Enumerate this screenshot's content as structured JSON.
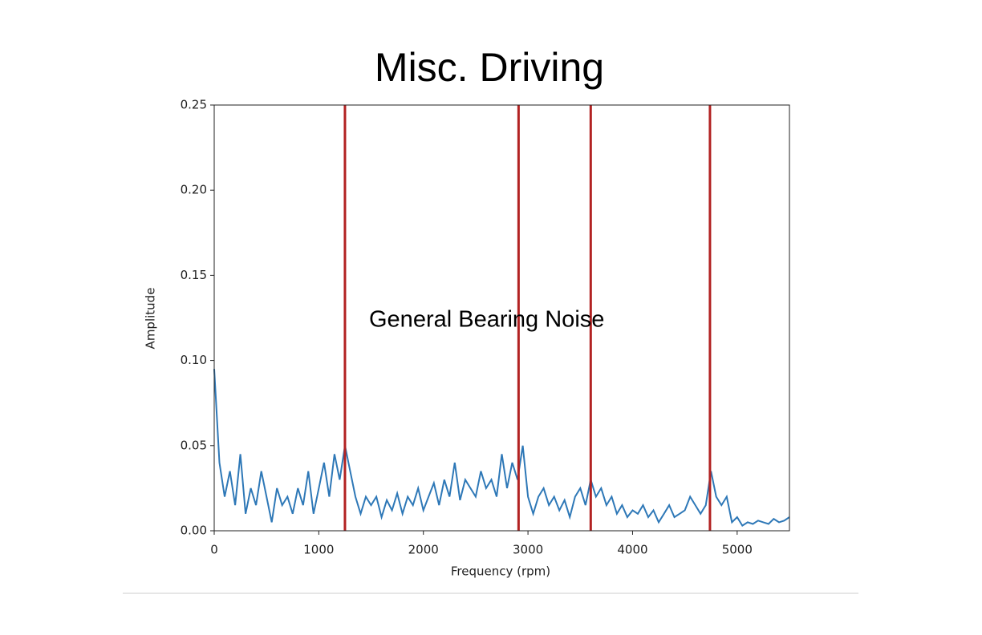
{
  "chart_data": {
    "type": "line",
    "title": "Misc. Driving",
    "xlabel": "Frequency (rpm)",
    "ylabel": "Amplitude",
    "annotation": "General Bearing Noise",
    "color": "#2e78b7",
    "vline_color": "#b22222",
    "vlines": [
      1250,
      2910,
      3600,
      4740
    ],
    "xlim": [
      0,
      5500
    ],
    "ylim": [
      0,
      0.25
    ],
    "xticks": [
      0,
      1000,
      2000,
      3000,
      4000,
      5000
    ],
    "yticks": [
      {
        "value": 0,
        "label": "0.00"
      },
      {
        "value": 0.05,
        "label": "0.05"
      },
      {
        "value": 0.1,
        "label": "0.10"
      },
      {
        "value": 0.15,
        "label": "0.15"
      },
      {
        "value": 0.2,
        "label": "0.20"
      },
      {
        "value": 0.25,
        "label": "0.25"
      }
    ],
    "x": [
      0,
      50,
      100,
      150,
      200,
      250,
      300,
      350,
      400,
      450,
      500,
      550,
      600,
      650,
      700,
      750,
      800,
      850,
      900,
      950,
      1000,
      1050,
      1100,
      1150,
      1200,
      1250,
      1300,
      1350,
      1400,
      1450,
      1500,
      1550,
      1600,
      1650,
      1700,
      1750,
      1800,
      1850,
      1900,
      1950,
      2000,
      2050,
      2100,
      2150,
      2200,
      2250,
      2300,
      2350,
      2400,
      2450,
      2500,
      2550,
      2600,
      2650,
      2700,
      2750,
      2800,
      2850,
      2900,
      2950,
      3000,
      3050,
      3100,
      3150,
      3200,
      3250,
      3300,
      3350,
      3400,
      3450,
      3500,
      3550,
      3600,
      3650,
      3700,
      3750,
      3800,
      3850,
      3900,
      3950,
      4000,
      4050,
      4100,
      4150,
      4200,
      4250,
      4300,
      4350,
      4400,
      4450,
      4500,
      4550,
      4600,
      4650,
      4700,
      4750,
      4800,
      4850,
      4900,
      4950,
      5000,
      5050,
      5100,
      5150,
      5200,
      5250,
      5300,
      5350,
      5400,
      5450,
      5500
    ],
    "values": [
      0.095,
      0.04,
      0.02,
      0.035,
      0.015,
      0.045,
      0.01,
      0.025,
      0.015,
      0.035,
      0.02,
      0.005,
      0.025,
      0.015,
      0.02,
      0.01,
      0.025,
      0.015,
      0.035,
      0.01,
      0.025,
      0.04,
      0.02,
      0.045,
      0.03,
      0.05,
      0.035,
      0.02,
      0.01,
      0.02,
      0.015,
      0.02,
      0.008,
      0.018,
      0.012,
      0.022,
      0.01,
      0.02,
      0.015,
      0.025,
      0.012,
      0.02,
      0.028,
      0.015,
      0.03,
      0.02,
      0.04,
      0.018,
      0.03,
      0.025,
      0.02,
      0.035,
      0.025,
      0.03,
      0.02,
      0.045,
      0.025,
      0.04,
      0.03,
      0.05,
      0.02,
      0.01,
      0.02,
      0.025,
      0.015,
      0.02,
      0.012,
      0.018,
      0.008,
      0.02,
      0.025,
      0.015,
      0.03,
      0.02,
      0.025,
      0.015,
      0.02,
      0.01,
      0.015,
      0.008,
      0.012,
      0.01,
      0.015,
      0.008,
      0.012,
      0.005,
      0.01,
      0.015,
      0.008,
      0.01,
      0.012,
      0.02,
      0.015,
      0.01,
      0.015,
      0.035,
      0.02,
      0.015,
      0.02,
      0.005,
      0.008,
      0.003,
      0.005,
      0.004,
      0.006,
      0.005,
      0.004,
      0.007,
      0.005,
      0.006,
      0.008
    ]
  }
}
